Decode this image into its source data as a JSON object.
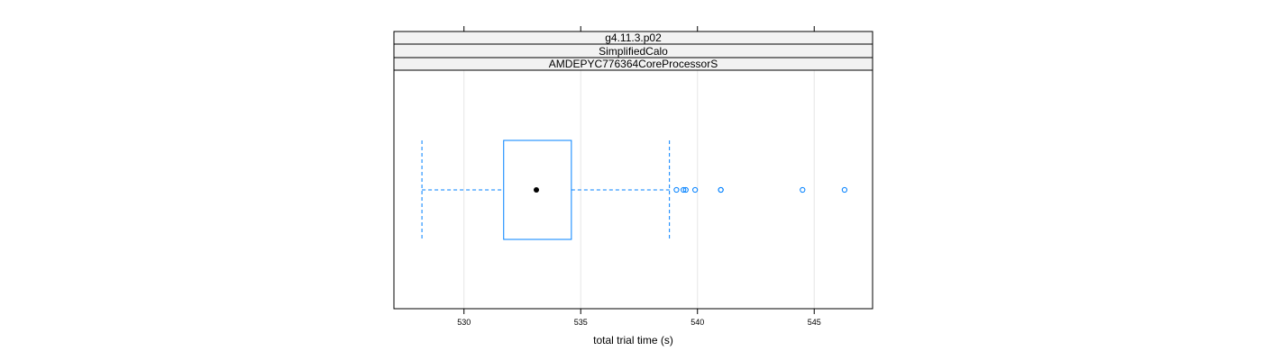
{
  "chart_data": {
    "type": "boxplot",
    "strips": [
      "g4.11.3.p02",
      "SimplifiedCalo",
      "AMDEPYC776364CoreProcessorS"
    ],
    "xlabel": "total trial time (s)",
    "xlim": [
      527.0,
      547.5
    ],
    "xticks": [
      530,
      535,
      540,
      545
    ],
    "xtick_labels": [
      "530",
      "535",
      "540",
      "545"
    ],
    "grid": true,
    "box": {
      "whisker_low": 528.2,
      "q1": 531.7,
      "median": 533.1,
      "q3": 534.6,
      "whisker_high": 538.8
    },
    "outliers": [
      539.1,
      539.4,
      539.5,
      539.9,
      541.0,
      541.0,
      544.5,
      546.3
    ],
    "colors": {
      "box": "#0080ff",
      "median": "#000000",
      "strip_bg": "#f2f2f2",
      "grid": "#e6e6e6",
      "frame": "#000000"
    }
  }
}
